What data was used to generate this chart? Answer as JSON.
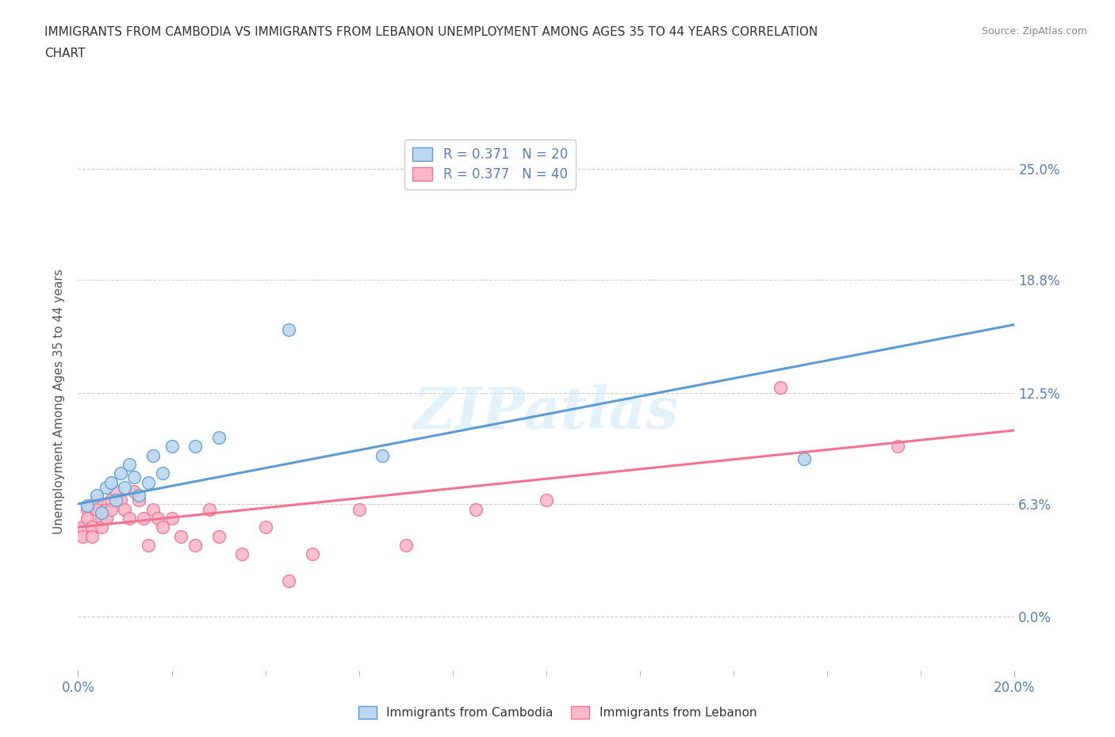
{
  "title_line1": "IMMIGRANTS FROM CAMBODIA VS IMMIGRANTS FROM LEBANON UNEMPLOYMENT AMONG AGES 35 TO 44 YEARS CORRELATION",
  "title_line2": "CHART",
  "source_text": "Source: ZipAtlas.com",
  "ylabel": "Unemployment Among Ages 35 to 44 years",
  "xlim": [
    0.0,
    0.2
  ],
  "ylim": [
    -0.03,
    0.27
  ],
  "xticks_major": [
    0.0,
    0.2
  ],
  "xtick_major_labels": [
    "0.0%",
    "20.0%"
  ],
  "xticks_minor": [
    0.02,
    0.04,
    0.06,
    0.08,
    0.1,
    0.12,
    0.14,
    0.16,
    0.18
  ],
  "yticks": [
    0.0,
    0.063,
    0.125,
    0.188,
    0.25
  ],
  "right_ytick_labels": [
    "0.0%",
    "6.3%",
    "12.5%",
    "18.8%",
    "25.0%"
  ],
  "grid_color": "#cccccc",
  "background_color": "#ffffff",
  "cambodia_color": "#5b9bd5",
  "cambodia_color_fill": "#bdd7ee",
  "cambodia_R": 0.371,
  "cambodia_N": 20,
  "cambodia_x": [
    0.002,
    0.004,
    0.005,
    0.006,
    0.007,
    0.008,
    0.009,
    0.01,
    0.011,
    0.012,
    0.013,
    0.015,
    0.016,
    0.018,
    0.02,
    0.025,
    0.03,
    0.045,
    0.065,
    0.155
  ],
  "cambodia_y": [
    0.062,
    0.068,
    0.058,
    0.072,
    0.075,
    0.065,
    0.08,
    0.072,
    0.085,
    0.078,
    0.068,
    0.075,
    0.09,
    0.08,
    0.095,
    0.095,
    0.1,
    0.16,
    0.09,
    0.088
  ],
  "lebanon_color": "#f4728f",
  "lebanon_color_fill": "#f9b8c7",
  "lebanon_R": 0.377,
  "lebanon_N": 40,
  "lebanon_x": [
    0.001,
    0.001,
    0.002,
    0.002,
    0.003,
    0.003,
    0.004,
    0.004,
    0.005,
    0.005,
    0.006,
    0.006,
    0.007,
    0.007,
    0.008,
    0.009,
    0.01,
    0.011,
    0.012,
    0.013,
    0.014,
    0.015,
    0.016,
    0.017,
    0.018,
    0.02,
    0.022,
    0.025,
    0.028,
    0.03,
    0.035,
    0.04,
    0.045,
    0.05,
    0.06,
    0.07,
    0.085,
    0.1,
    0.15,
    0.175
  ],
  "lebanon_y": [
    0.05,
    0.045,
    0.06,
    0.055,
    0.05,
    0.045,
    0.065,
    0.06,
    0.055,
    0.05,
    0.06,
    0.055,
    0.065,
    0.06,
    0.07,
    0.065,
    0.06,
    0.055,
    0.07,
    0.065,
    0.055,
    0.04,
    0.06,
    0.055,
    0.05,
    0.055,
    0.045,
    0.04,
    0.06,
    0.045,
    0.035,
    0.05,
    0.02,
    0.035,
    0.06,
    0.04,
    0.06,
    0.065,
    0.128,
    0.095
  ],
  "cam_trend_x0": 0.0,
  "cam_trend_y0": 0.063,
  "cam_trend_x1": 0.2,
  "cam_trend_y1": 0.163,
  "leb_trend_x0": 0.0,
  "leb_trend_y0": 0.05,
  "leb_trend_x1": 0.2,
  "leb_trend_y1": 0.104
}
